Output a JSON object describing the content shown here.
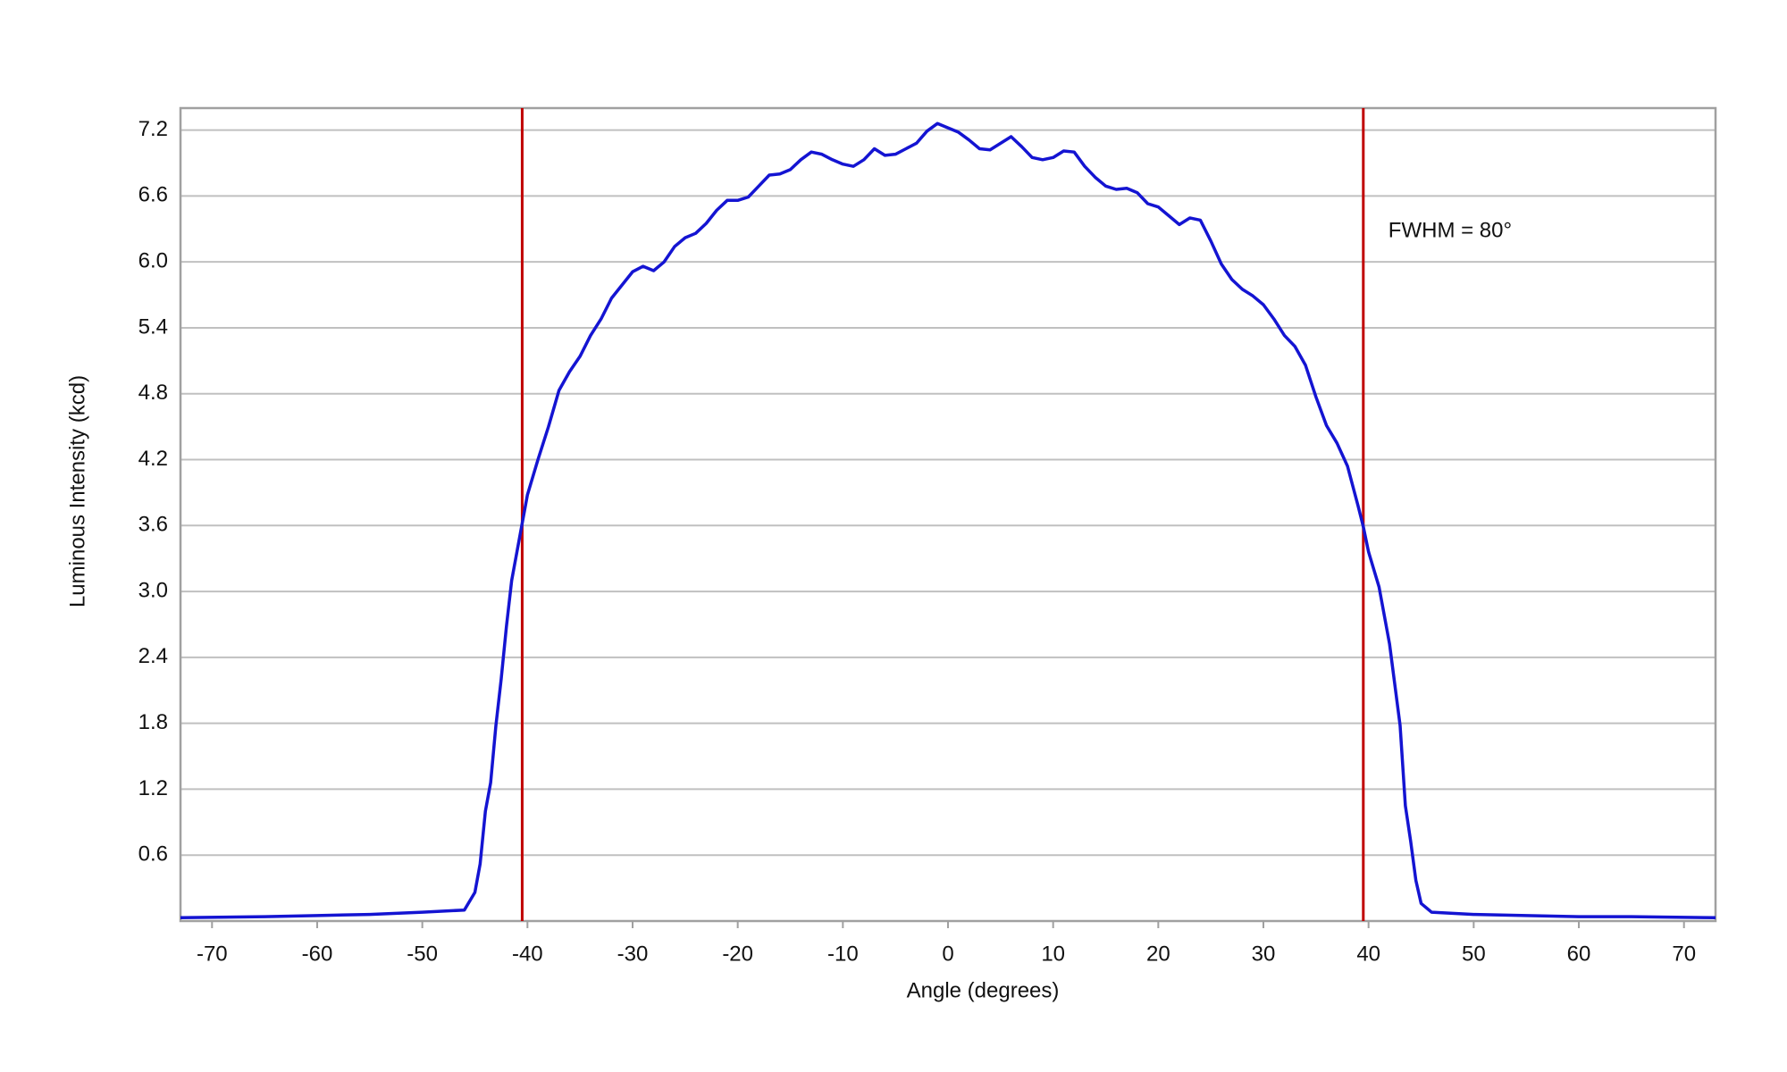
{
  "chart_data": {
    "type": "line",
    "x_label": "Angle (degrees)",
    "y_label": "Luminous Intensity (kcd)",
    "annotation": "FWHM = 80°",
    "color": "#1414d2",
    "vlines": [
      -40.5,
      39.5
    ],
    "vline_color": "#c00000",
    "grid": true,
    "xlim": [
      -73,
      73
    ],
    "ylim": [
      0,
      7.4
    ],
    "xticks": [
      -70,
      -60,
      -50,
      -40,
      -30,
      -20,
      -10,
      0,
      10,
      20,
      30,
      40,
      50,
      60,
      70
    ],
    "yticks": [
      0.6,
      1.2,
      1.8,
      2.4,
      {
        "value": 3,
        "label": "3.0"
      },
      3.6,
      4.2,
      4.8,
      5.4,
      {
        "value": 6,
        "label": "6.0"
      },
      6.6,
      7.2
    ],
    "x": [
      -73,
      -65,
      -60,
      -55,
      -50,
      -46,
      -45,
      -44.5,
      -44,
      -43.5,
      -43,
      -42.5,
      -42,
      -41.5,
      -41,
      -40.5,
      -40,
      -39,
      -38,
      -37,
      -36,
      -35,
      -34,
      -33,
      -32,
      -31,
      -30,
      -29,
      -28,
      -27,
      -26,
      -25,
      -24,
      -23,
      -22,
      -21,
      -20,
      -19,
      -18,
      -17,
      -16,
      -15,
      -14,
      -13,
      -12,
      -11,
      -10,
      -9,
      -8,
      -7,
      -6,
      -5,
      -4,
      -3,
      -2,
      -1,
      0,
      1,
      2,
      3,
      4,
      5,
      6,
      7,
      8,
      9,
      10,
      11,
      12,
      13,
      14,
      15,
      16,
      17,
      18,
      19,
      20,
      21,
      22,
      23,
      24,
      25,
      26,
      27,
      28,
      29,
      30,
      31,
      32,
      33,
      34,
      35,
      36,
      37,
      38,
      39,
      39.5,
      40,
      41,
      42,
      43,
      43.5,
      44,
      44.5,
      45,
      46,
      48,
      50,
      55,
      60,
      65,
      73
    ],
    "values": [
      0.03,
      0.04,
      0.05,
      0.06,
      0.08,
      0.1,
      0.26,
      0.52,
      1.0,
      1.26,
      1.78,
      2.2,
      2.68,
      3.1,
      3.36,
      3.62,
      3.88,
      4.2,
      4.5,
      4.83,
      5.0,
      5.14,
      5.33,
      5.48,
      5.67,
      5.79,
      5.91,
      5.96,
      5.92,
      6.0,
      6.14,
      6.22,
      6.26,
      6.35,
      6.47,
      6.56,
      6.56,
      6.59,
      6.69,
      6.79,
      6.8,
      6.84,
      6.93,
      7.0,
      6.98,
      6.93,
      6.89,
      6.87,
      6.93,
      7.03,
      6.97,
      6.98,
      7.03,
      7.08,
      7.19,
      7.26,
      7.22,
      7.18,
      7.11,
      7.03,
      7.02,
      7.08,
      7.14,
      7.05,
      6.95,
      6.93,
      6.95,
      7.01,
      7.0,
      6.87,
      6.77,
      6.69,
      6.66,
      6.67,
      6.63,
      6.53,
      6.5,
      6.42,
      6.34,
      6.4,
      6.38,
      6.19,
      5.98,
      5.84,
      5.75,
      5.69,
      5.61,
      5.48,
      5.33,
      5.23,
      5.06,
      4.77,
      4.51,
      4.35,
      4.14,
      3.78,
      3.59,
      3.36,
      3.04,
      2.52,
      1.78,
      1.05,
      0.73,
      0.37,
      0.16,
      0.08,
      0.07,
      0.06,
      0.05,
      0.04,
      0.04,
      0.03
    ]
  }
}
